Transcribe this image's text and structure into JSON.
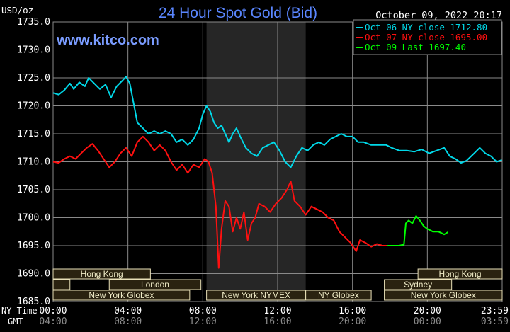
{
  "chart_data": {
    "type": "line",
    "title": "24 Hour Spot Gold (Bid)",
    "ylabel": "USD/oz",
    "watermark": "www.kitco.com",
    "timestamp": "October 09, 2022 20:17",
    "ylim": [
      1685,
      1735
    ],
    "y_ticks": [
      "1735.0",
      "1730.0",
      "1725.0",
      "1720.0",
      "1715.0",
      "1710.0",
      "1705.0",
      "1700.0",
      "1695.0",
      "1690.0",
      "1685.0"
    ],
    "x_ticks_ny": [
      "00:00",
      "04:00",
      "08:00",
      "12:00",
      "16:00",
      "20:00",
      "23:59"
    ],
    "x_ticks_gmt": [
      "04:00",
      "08:00",
      "12:00",
      "16:00",
      "20:00",
      "00:00",
      "03:59"
    ],
    "x_row_labels": {
      "ny": "NY Time",
      "gmt": "GMT"
    },
    "legend": [
      "Oct 06 NY close 1712.80",
      "Oct 07 NY close 1695.00",
      "Oct 09 Last 1697.40"
    ],
    "colors": {
      "background": "#000000",
      "grid": "#8a8a8a",
      "shade": "#262626",
      "series1": "#00d8e8",
      "series2": "#ff1010",
      "series3": "#00ff00",
      "title": "#5a86ff",
      "watermark": "#7a9cff",
      "session_fill": "#2a2210",
      "session_border": "#e8e0b8",
      "session_text": "#f0ecc8"
    },
    "sessions": [
      {
        "label": "Hong Kong",
        "start": 0,
        "end": 5.2,
        "row": 0
      },
      {
        "label": "Hong Kong",
        "start": 19.5,
        "end": 24,
        "row": 0
      },
      {
        "label": "",
        "start": 0,
        "end": 0.9,
        "row": 1
      },
      {
        "label": "London",
        "start": 3.0,
        "end": 7.9,
        "row": 1
      },
      {
        "label": "Sydney",
        "start": 17.7,
        "end": 21.3,
        "row": 1
      },
      {
        "label": "New York Globex",
        "start": 0,
        "end": 7.3,
        "row": 2
      },
      {
        "label": "New York NYMEX",
        "start": 8.2,
        "end": 13.5,
        "row": 2
      },
      {
        "label": "NY Globex",
        "start": 13.5,
        "end": 17.0,
        "row": 2
      },
      {
        "label": "New York Globex",
        "start": 17.7,
        "end": 24,
        "row": 2
      }
    ],
    "shaded_range": [
      8.2,
      13.5
    ],
    "series": [
      {
        "name": "Oct 06",
        "points": [
          [
            0,
            1722.3
          ],
          [
            0.3,
            1722.0
          ],
          [
            0.6,
            1722.8
          ],
          [
            0.9,
            1724.0
          ],
          [
            1.1,
            1723.0
          ],
          [
            1.4,
            1724.2
          ],
          [
            1.7,
            1723.5
          ],
          [
            1.9,
            1725.0
          ],
          [
            2.2,
            1724.0
          ],
          [
            2.5,
            1723.0
          ],
          [
            2.8,
            1723.8
          ],
          [
            3.1,
            1721.5
          ],
          [
            3.4,
            1723.5
          ],
          [
            3.7,
            1724.5
          ],
          [
            3.9,
            1725.2
          ],
          [
            4.1,
            1724.0
          ],
          [
            4.3,
            1720.5
          ],
          [
            4.5,
            1717.0
          ],
          [
            4.8,
            1716.0
          ],
          [
            5.1,
            1715.0
          ],
          [
            5.4,
            1715.5
          ],
          [
            5.7,
            1715.0
          ],
          [
            6.0,
            1715.5
          ],
          [
            6.3,
            1715.0
          ],
          [
            6.6,
            1713.5
          ],
          [
            6.9,
            1714.0
          ],
          [
            7.2,
            1713.0
          ],
          [
            7.5,
            1714.0
          ],
          [
            7.8,
            1716.0
          ],
          [
            8.0,
            1718.5
          ],
          [
            8.2,
            1720.0
          ],
          [
            8.4,
            1719.0
          ],
          [
            8.6,
            1717.0
          ],
          [
            8.8,
            1716.0
          ],
          [
            9.0,
            1716.5
          ],
          [
            9.2,
            1715.0
          ],
          [
            9.4,
            1713.5
          ],
          [
            9.6,
            1715.0
          ],
          [
            9.8,
            1716.0
          ],
          [
            10.0,
            1714.5
          ],
          [
            10.3,
            1712.5
          ],
          [
            10.6,
            1711.5
          ],
          [
            10.9,
            1711.0
          ],
          [
            11.2,
            1712.5
          ],
          [
            11.5,
            1713.0
          ],
          [
            11.8,
            1713.5
          ],
          [
            12.1,
            1712.0
          ],
          [
            12.4,
            1710.0
          ],
          [
            12.7,
            1709.0
          ],
          [
            13.0,
            1711.0
          ],
          [
            13.3,
            1712.5
          ],
          [
            13.6,
            1712.0
          ],
          [
            13.9,
            1713.0
          ],
          [
            14.2,
            1713.5
          ],
          [
            14.5,
            1713.0
          ],
          [
            14.8,
            1714.0
          ],
          [
            15.1,
            1714.5
          ],
          [
            15.4,
            1715.0
          ],
          [
            15.7,
            1714.5
          ],
          [
            16.0,
            1714.5
          ],
          [
            16.3,
            1713.5
          ],
          [
            16.6,
            1713.5
          ],
          [
            17.0,
            1713.0
          ],
          [
            17.5,
            1713.0
          ],
          [
            17.8,
            1713.0
          ],
          [
            18.1,
            1712.5
          ],
          [
            18.5,
            1712.0
          ],
          [
            18.9,
            1712.0
          ],
          [
            19.3,
            1711.8
          ],
          [
            19.7,
            1712.2
          ],
          [
            20.1,
            1711.5
          ],
          [
            20.5,
            1712.0
          ],
          [
            20.9,
            1712.5
          ],
          [
            21.2,
            1711.0
          ],
          [
            21.5,
            1710.5
          ],
          [
            21.8,
            1709.8
          ],
          [
            22.1,
            1710.2
          ],
          [
            22.5,
            1711.5
          ],
          [
            22.8,
            1712.5
          ],
          [
            23.1,
            1711.5
          ],
          [
            23.4,
            1711.0
          ],
          [
            23.7,
            1710.0
          ],
          [
            23.98,
            1710.3
          ]
        ]
      },
      {
        "name": "Oct 07",
        "points": [
          [
            0,
            1710.0
          ],
          [
            0.3,
            1709.8
          ],
          [
            0.6,
            1710.5
          ],
          [
            0.9,
            1711.0
          ],
          [
            1.2,
            1710.5
          ],
          [
            1.5,
            1711.5
          ],
          [
            1.8,
            1712.5
          ],
          [
            2.1,
            1713.2
          ],
          [
            2.4,
            1712.0
          ],
          [
            2.7,
            1710.5
          ],
          [
            3.0,
            1709.0
          ],
          [
            3.3,
            1710.0
          ],
          [
            3.6,
            1711.5
          ],
          [
            3.9,
            1712.5
          ],
          [
            4.2,
            1711.0
          ],
          [
            4.5,
            1713.5
          ],
          [
            4.8,
            1714.5
          ],
          [
            5.1,
            1713.5
          ],
          [
            5.4,
            1712.0
          ],
          [
            5.7,
            1713.0
          ],
          [
            6.0,
            1712.0
          ],
          [
            6.3,
            1710.0
          ],
          [
            6.6,
            1708.5
          ],
          [
            6.9,
            1709.5
          ],
          [
            7.2,
            1708.0
          ],
          [
            7.5,
            1709.5
          ],
          [
            7.8,
            1709.0
          ],
          [
            8.1,
            1710.5
          ],
          [
            8.3,
            1710.0
          ],
          [
            8.5,
            1708.0
          ],
          [
            8.7,
            1702.0
          ],
          [
            8.85,
            1691.0
          ],
          [
            9.0,
            1698.0
          ],
          [
            9.2,
            1703.0
          ],
          [
            9.4,
            1702.0
          ],
          [
            9.6,
            1697.5
          ],
          [
            9.8,
            1700.0
          ],
          [
            10.0,
            1698.0
          ],
          [
            10.2,
            1701.0
          ],
          [
            10.4,
            1696.0
          ],
          [
            10.6,
            1699.0
          ],
          [
            10.8,
            1700.0
          ],
          [
            11.0,
            1702.5
          ],
          [
            11.3,
            1702.0
          ],
          [
            11.6,
            1701.0
          ],
          [
            11.9,
            1702.5
          ],
          [
            12.2,
            1703.5
          ],
          [
            12.5,
            1705.0
          ],
          [
            12.7,
            1706.5
          ],
          [
            12.9,
            1703.0
          ],
          [
            13.2,
            1702.0
          ],
          [
            13.5,
            1700.5
          ],
          [
            13.8,
            1702.0
          ],
          [
            14.1,
            1701.5
          ],
          [
            14.4,
            1701.0
          ],
          [
            14.7,
            1700.0
          ],
          [
            15.0,
            1699.5
          ],
          [
            15.3,
            1697.5
          ],
          [
            15.6,
            1696.5
          ],
          [
            15.9,
            1695.5
          ],
          [
            16.2,
            1694.0
          ],
          [
            16.4,
            1696.0
          ],
          [
            16.7,
            1695.5
          ],
          [
            17.0,
            1694.8
          ],
          [
            17.3,
            1695.3
          ],
          [
            17.6,
            1695.0
          ],
          [
            17.85,
            1695.0
          ]
        ]
      },
      {
        "name": "Oct 09",
        "points": [
          [
            17.85,
            1695.0
          ],
          [
            18.1,
            1695.0
          ],
          [
            18.5,
            1695.0
          ],
          [
            18.75,
            1695.2
          ],
          [
            18.85,
            1699.0
          ],
          [
            19.0,
            1699.5
          ],
          [
            19.2,
            1699.0
          ],
          [
            19.4,
            1700.3
          ],
          [
            19.6,
            1699.5
          ],
          [
            19.8,
            1698.5
          ],
          [
            20.0,
            1698.0
          ],
          [
            20.3,
            1697.5
          ],
          [
            20.6,
            1697.5
          ],
          [
            20.9,
            1697.0
          ],
          [
            21.1,
            1697.4
          ]
        ]
      }
    ]
  }
}
